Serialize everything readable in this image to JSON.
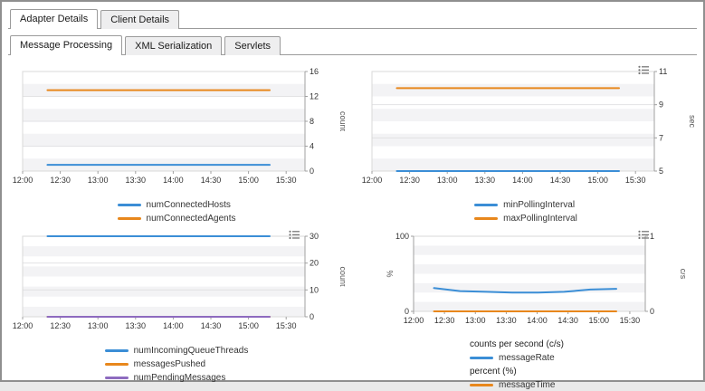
{
  "top_tabs": [
    {
      "label": "Adapter Details",
      "active": true
    },
    {
      "label": "Client Details",
      "active": false
    }
  ],
  "sub_tabs": [
    {
      "label": "Message Processing",
      "active": true
    },
    {
      "label": "XML Serialization",
      "active": false
    },
    {
      "label": "Servlets",
      "active": false
    }
  ],
  "colors": {
    "blue": "#3b8ed6",
    "orange": "#e8871c",
    "purple": "#8e6bbf",
    "band": "#f3f3f5",
    "grid": "#e2e2e4",
    "plot_border": "#d8d8d8",
    "axis": "#a0a0a0",
    "text": "#333333",
    "axis_label": "#555555",
    "icon": "#777777"
  },
  "chart_data": [
    {
      "type": "line",
      "x_ticks": [
        "12:00",
        "12:30",
        "13:00",
        "13:30",
        "14:00",
        "14:30",
        "15:00",
        "15:30"
      ],
      "axes": {
        "right": {
          "label": "count",
          "lim": [
            0,
            16
          ],
          "ticks": [
            0,
            4,
            8,
            12,
            16
          ]
        }
      },
      "menu_icon": false,
      "series": [
        {
          "name": "numConnectedHosts",
          "color_key": "blue",
          "axis": "right",
          "values": [
            1,
            1,
            1,
            1,
            1,
            1,
            1,
            1
          ]
        },
        {
          "name": "numConnectedAgents",
          "color_key": "orange",
          "axis": "right",
          "values": [
            13,
            13,
            13,
            13,
            13,
            13,
            13,
            13
          ]
        }
      ]
    },
    {
      "type": "line",
      "x_ticks": [
        "12:00",
        "12:30",
        "13:00",
        "13:30",
        "14:00",
        "14:30",
        "15:00",
        "15:30"
      ],
      "axes": {
        "right": {
          "label": "sec",
          "lim": [
            5,
            11
          ],
          "ticks": [
            5,
            7,
            9,
            11
          ]
        }
      },
      "menu_icon": true,
      "series": [
        {
          "name": "minPollingInterval",
          "color_key": "blue",
          "axis": "right",
          "values": [
            5,
            5,
            5,
            5,
            5,
            5,
            5,
            5
          ]
        },
        {
          "name": "maxPollingInterval",
          "color_key": "orange",
          "axis": "right",
          "values": [
            10,
            10,
            10,
            10,
            10,
            10,
            10,
            10
          ]
        }
      ]
    },
    {
      "type": "line",
      "x_ticks": [
        "12:00",
        "12:30",
        "13:00",
        "13:30",
        "14:00",
        "14:30",
        "15:00",
        "15:30"
      ],
      "axes": {
        "right": {
          "label": "count",
          "lim": [
            0,
            30
          ],
          "ticks": [
            0,
            10,
            20,
            30
          ]
        }
      },
      "menu_icon": true,
      "series": [
        {
          "name": "numIncomingQueueThreads",
          "color_key": "blue",
          "axis": "right",
          "values": [
            30,
            30,
            30,
            30,
            30,
            30,
            30,
            30
          ]
        },
        {
          "name": "messagesPushed",
          "color_key": "orange",
          "axis": "right",
          "values": [
            0,
            0,
            0,
            0,
            0,
            0,
            0,
            0
          ]
        },
        {
          "name": "numPendingMessages",
          "color_key": "purple",
          "axis": "right",
          "values": [
            0,
            0,
            0,
            0,
            0,
            0,
            0,
            0
          ]
        }
      ]
    },
    {
      "type": "line",
      "x_ticks": [
        "12:00",
        "12:30",
        "13:00",
        "13:30",
        "14:00",
        "14:30",
        "15:00",
        "15:30"
      ],
      "axes": {
        "left": {
          "label": "%",
          "lim": [
            0,
            100
          ],
          "ticks": [
            0,
            100
          ]
        },
        "right": {
          "label": "c/s",
          "lim": [
            0,
            1
          ],
          "ticks": [
            0,
            1
          ]
        }
      },
      "menu_icon": true,
      "series": [
        {
          "name": "messageRate",
          "color_key": "blue",
          "axis": "right",
          "values": [
            0.31,
            0.27,
            0.26,
            0.25,
            0.25,
            0.26,
            0.29,
            0.3
          ]
        },
        {
          "name": "messageTime",
          "color_key": "orange",
          "axis": "left",
          "values": [
            0,
            0,
            0,
            0,
            0,
            0,
            0,
            0
          ]
        }
      ],
      "legend_groups": [
        {
          "title": "counts per second (c/s)",
          "items": [
            "messageRate"
          ]
        },
        {
          "title": "percent (%)",
          "items": [
            "messageTime"
          ]
        }
      ]
    }
  ]
}
